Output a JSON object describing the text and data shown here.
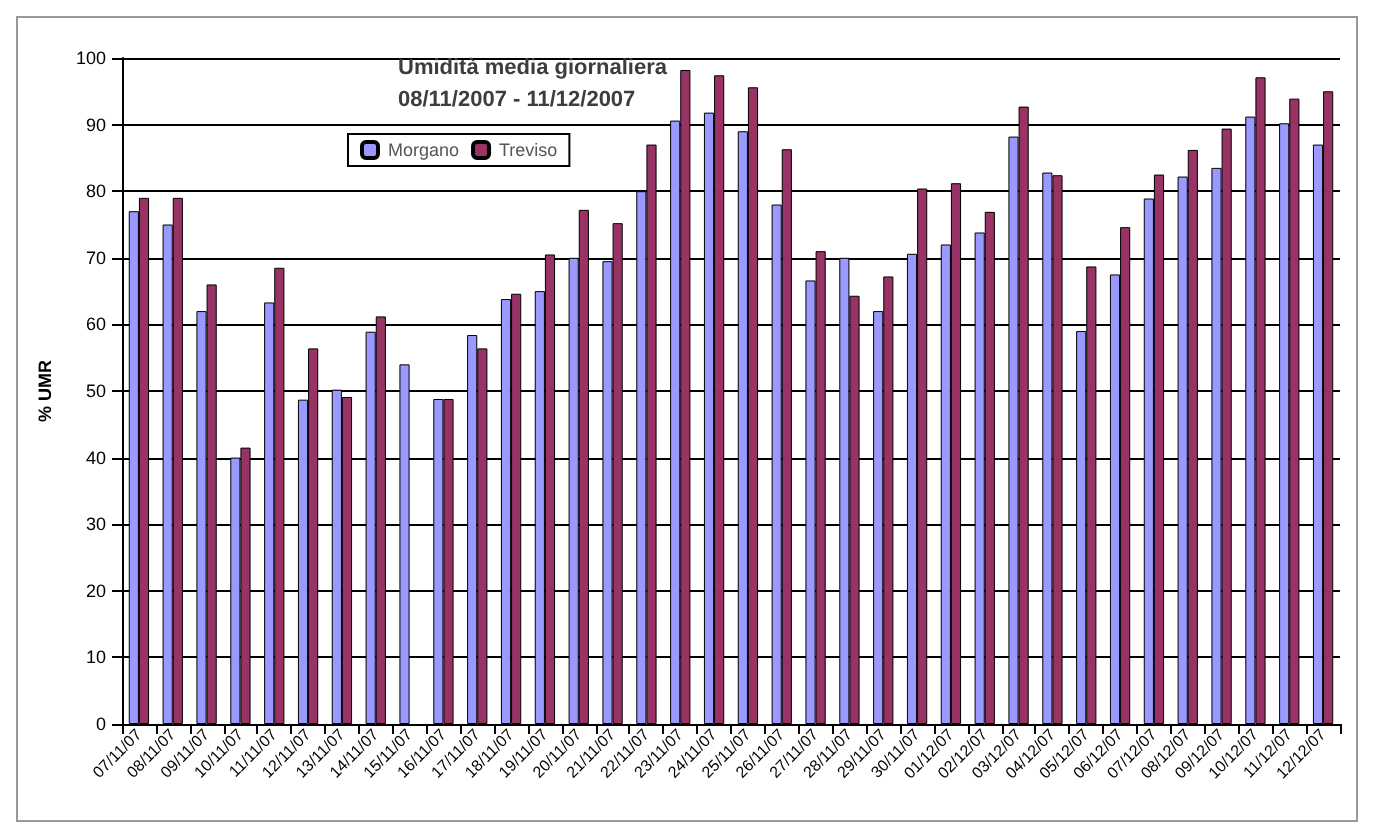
{
  "chart_data": {
    "type": "bar",
    "title": "Umidità media giornaliera\n08/11/2007 - 11/12/2007",
    "ylabel": "% UMR",
    "categories": [
      "07/11/07",
      "08/11/07",
      "09/11/07",
      "10/11/07",
      "11/11/07",
      "12/11/07",
      "13/11/07",
      "14/11/07",
      "15/11/07",
      "16/11/07",
      "17/11/07",
      "18/11/07",
      "19/11/07",
      "20/11/07",
      "21/11/07",
      "22/11/07",
      "23/11/07",
      "24/11/07",
      "25/11/07",
      "26/11/07",
      "27/11/07",
      "28/11/07",
      "29/11/07",
      "30/11/07",
      "01/12/07",
      "02/12/07",
      "03/12/07",
      "04/12/07",
      "05/12/07",
      "06/12/07",
      "07/12/07",
      "08/12/07",
      "09/12/07",
      "10/12/07",
      "11/12/07",
      "12/12/07"
    ],
    "series": [
      {
        "name": "Morgano",
        "color": "#9999ff",
        "values": [
          77,
          75,
          62,
          40,
          63.3,
          48.7,
          50.2,
          58.9,
          54,
          48.8,
          58.4,
          63.8,
          65,
          70,
          69.5,
          80,
          90.6,
          91.8,
          89,
          78,
          66.6,
          70,
          62,
          70.6,
          72,
          73.8,
          88.2,
          82.8,
          59,
          67.5,
          78.9,
          82.2,
          83.5,
          91.2,
          90.2,
          87
        ]
      },
      {
        "name": "Treviso",
        "color": "#993366",
        "values": [
          79,
          79,
          66,
          41.5,
          68.5,
          56.4,
          49.1,
          61.2,
          null,
          48.8,
          56.4,
          64.6,
          70.5,
          77.2,
          75.2,
          87,
          98.2,
          97.4,
          95.6,
          86.3,
          71,
          64.3,
          67.2,
          80.4,
          81.2,
          76.9,
          92.7,
          82.4,
          68.7,
          74.6,
          82.5,
          86.2,
          89.4,
          97.1,
          93.9,
          95
        ]
      }
    ],
    "ylim": [
      0,
      100
    ],
    "yticks": [
      0,
      10,
      20,
      30,
      40,
      50,
      60,
      70,
      80,
      90,
      100
    ],
    "grid": "y",
    "legend": "top left"
  }
}
